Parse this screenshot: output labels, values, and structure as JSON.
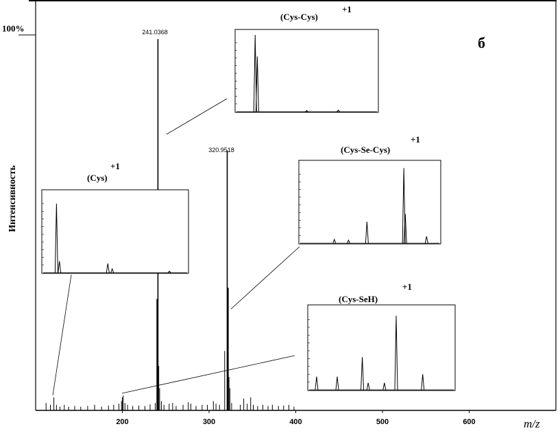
{
  "chart_data": {
    "type": "bar",
    "title": "",
    "xlabel": "m/z",
    "ylabel": "Интенсивность",
    "y_max_label": "100%",
    "panel_label": "б",
    "xlim": [
      100,
      700
    ],
    "ylim": [
      0,
      100
    ],
    "x_ticks": [
      "200",
      "300",
      "400",
      "500",
      "600"
    ],
    "grid": false,
    "peak_labels": [
      "241.0368",
      "320.9518"
    ],
    "peaks": [
      [
        112,
        2
      ],
      [
        117,
        1.5
      ],
      [
        121,
        3.5
      ],
      [
        124,
        1.5
      ],
      [
        128,
        1
      ],
      [
        133,
        1.5
      ],
      [
        138,
        1
      ],
      [
        145,
        1.2
      ],
      [
        152,
        1
      ],
      [
        160,
        1.2
      ],
      [
        168,
        1.5
      ],
      [
        176,
        1
      ],
      [
        184,
        1.3
      ],
      [
        190,
        1.5
      ],
      [
        196,
        1.8
      ],
      [
        199,
        2.5
      ],
      [
        200,
        3.5
      ],
      [
        201,
        4
      ],
      [
        203,
        2
      ],
      [
        206,
        1.5
      ],
      [
        212,
        1.2
      ],
      [
        219,
        1.3
      ],
      [
        226,
        1.2
      ],
      [
        232,
        1.6
      ],
      [
        238,
        2
      ],
      [
        240,
        30
      ],
      [
        241.0368,
        100
      ],
      [
        242,
        12
      ],
      [
        243,
        6
      ],
      [
        245,
        2.5
      ],
      [
        248,
        1.5
      ],
      [
        254,
        1.8
      ],
      [
        258,
        2
      ],
      [
        262,
        1.2
      ],
      [
        270,
        1.5
      ],
      [
        276,
        2.2
      ],
      [
        279,
        1.8
      ],
      [
        285,
        1.2
      ],
      [
        292,
        1.5
      ],
      [
        298,
        1.5
      ],
      [
        305,
        2.5
      ],
      [
        308,
        1.8
      ],
      [
        312,
        1.5
      ],
      [
        318,
        16
      ],
      [
        320.9518,
        70
      ],
      [
        322,
        33
      ],
      [
        323,
        9
      ],
      [
        324,
        6
      ],
      [
        326,
        2
      ],
      [
        336,
        1.5
      ],
      [
        340,
        3.2
      ],
      [
        344,
        1.8
      ],
      [
        348,
        3.5
      ],
      [
        351,
        1.5
      ],
      [
        356,
        1.2
      ],
      [
        362,
        1.5
      ],
      [
        368,
        1.2
      ],
      [
        373,
        1.5
      ],
      [
        380,
        1.2
      ],
      [
        386,
        1.3
      ],
      [
        392,
        1.5
      ],
      [
        398,
        1
      ]
    ],
    "insets": [
      {
        "label": "(Cys)",
        "charge": "+1",
        "peaks": [
          [
            0.1,
            90
          ],
          [
            0.12,
            15
          ],
          [
            0.45,
            12
          ],
          [
            0.48,
            5
          ],
          [
            0.87,
            2
          ]
        ]
      },
      {
        "label": "(Cys-Cys)",
        "charge": "+1",
        "peaks": [
          [
            0.14,
            100
          ],
          [
            0.155,
            72
          ],
          [
            0.5,
            1.5
          ],
          [
            0.72,
            2
          ]
        ]
      },
      {
        "label": "(Cys-Se-Cys)",
        "charge": "+1",
        "peaks": [
          [
            0.25,
            5
          ],
          [
            0.35,
            4
          ],
          [
            0.48,
            28
          ],
          [
            0.74,
            98
          ],
          [
            0.75,
            38
          ],
          [
            0.9,
            9
          ]
        ]
      },
      {
        "label": "(Cys-SeH)",
        "charge": "+1",
        "peaks": [
          [
            0.06,
            17
          ],
          [
            0.2,
            17
          ],
          [
            0.37,
            42
          ],
          [
            0.41,
            9
          ],
          [
            0.52,
            9
          ],
          [
            0.6,
            95
          ],
          [
            0.78,
            20
          ]
        ]
      }
    ]
  }
}
